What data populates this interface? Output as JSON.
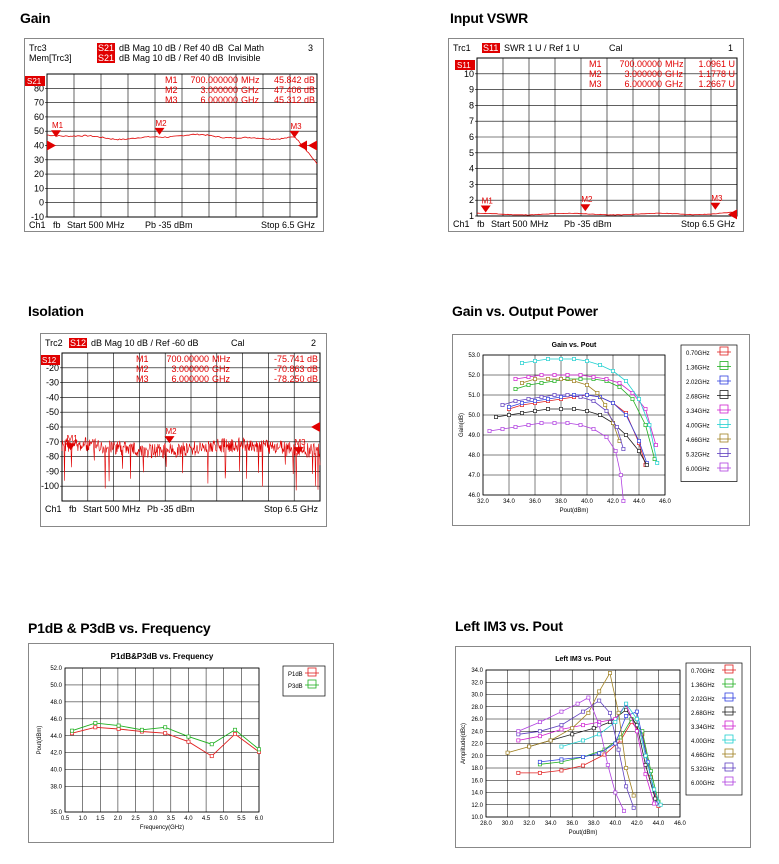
{
  "sections": {
    "gain": "Gain",
    "vswr": "Input VSWR",
    "isolation": "Isolation",
    "gain_pout": "Gain vs. Output Power",
    "p1db": "P1dB & P3dB vs. Frequency",
    "im3": "Left  IM3 vs.  Pout"
  },
  "chart_data": [
    {
      "type": "line",
      "id": "gain",
      "header": [
        {
          "trace": "Trc3",
          "param": "S21",
          "text": "dB Mag  10 dB /  Ref 40 dB",
          "extra": "Cal  Math",
          "num": "3"
        },
        {
          "trace": "Mem[Trc3]",
          "param": "S21",
          "text": "dB Mag  10 dB /  Ref 40 dB",
          "extra": "Invisible",
          "num": ""
        }
      ],
      "trace_tag": "S21",
      "yticks": [
        "80",
        "70",
        "60",
        "50",
        "40",
        "30",
        "20",
        "10",
        "0",
        "-10"
      ],
      "ylim": [
        -10,
        90
      ],
      "markers": [
        {
          "name": "M1",
          "value": "700.000000",
          "unit": "MHz",
          "reading": "45.842 dB",
          "f": 0.7,
          "y": 45.8
        },
        {
          "name": "M2",
          "value": "3.000000",
          "unit": "GHz",
          "reading": "47.406 dB",
          "f": 3.0,
          "y": 47.4
        },
        {
          "name": "M3",
          "value": "6.000000",
          "unit": "GHz",
          "reading": "45.312 dB",
          "f": 6.0,
          "y": 45.3
        }
      ],
      "footer": {
        "ch": "Ch1",
        "mode": "fb",
        "start": "Start  500 MHz",
        "power": "Pb   -35 dBm",
        "stop": "Stop  6.5 GHz"
      },
      "trace_color": "#e00000"
    },
    {
      "type": "line",
      "id": "vswr",
      "header": [
        {
          "trace": "Trc1",
          "param": "S11",
          "text": "SWR  1 U /  Ref 1 U",
          "extra": "Cal",
          "num": "1"
        }
      ],
      "trace_tag": "S11",
      "yticks": [
        "10",
        "9",
        "8",
        "7",
        "6",
        "5",
        "4",
        "3",
        "2",
        "1"
      ],
      "ylim": [
        1,
        11
      ],
      "markers": [
        {
          "name": "M1",
          "value": "700.00000",
          "unit": "MHz",
          "reading": "1.0961 U",
          "f": 0.7,
          "y": 1.096
        },
        {
          "name": "M2",
          "value": "3.000000",
          "unit": "GHz",
          "reading": "1.1778 U",
          "f": 3.0,
          "y": 1.178
        },
        {
          "name": "M3",
          "value": "6.000000",
          "unit": "GHz",
          "reading": "1.2667 U",
          "f": 6.0,
          "y": 1.267
        }
      ],
      "footer": {
        "ch": "Ch1",
        "mode": "fb",
        "start": "Start  500 MHz",
        "power": "Pb   -35 dBm",
        "stop": "Stop  6.5 GHz"
      },
      "trace_color": "#e00000"
    },
    {
      "type": "line",
      "id": "isolation",
      "header": [
        {
          "trace": "Trc2",
          "param": "S12",
          "text": "dB Mag  10 dB /  Ref -60 dB",
          "extra": "Cal",
          "num": "2"
        }
      ],
      "trace_tag": "S12",
      "yticks": [
        "-20",
        "-30",
        "-40",
        "-50",
        "-60",
        "-70",
        "-80",
        "-90",
        "-100"
      ],
      "ylim": [
        -110,
        -10
      ],
      "markers": [
        {
          "name": "M1",
          "value": "700.00000",
          "unit": "MHz",
          "reading": "-75.741 dB",
          "f": 0.7,
          "y": -75.7
        },
        {
          "name": "M2",
          "value": "3.000000",
          "unit": "GHz",
          "reading": "-70.863 dB",
          "f": 3.0,
          "y": -70.9
        },
        {
          "name": "M3",
          "value": "6.000000",
          "unit": "GHz",
          "reading": "-78.250 dB",
          "f": 6.0,
          "y": -78.3
        }
      ],
      "footer": {
        "ch": "Ch1",
        "mode": "fb",
        "start": "Start  500 MHz",
        "power": "Pb   -35 dBm",
        "stop": "Stop  6.5 GHz"
      },
      "trace_color": "#e00000"
    },
    {
      "type": "line",
      "id": "gain_pout",
      "title": "Gain vs. Pout",
      "xlabel": "Pout(dBm)",
      "ylabel": "Gain(dB)",
      "xlim": [
        32,
        46
      ],
      "ylim": [
        46,
        53
      ],
      "xticks": [
        "32.0",
        "34.0",
        "36.0",
        "38.0",
        "40.0",
        "42.0",
        "44.0",
        "46.0"
      ],
      "yticks": [
        "46.0",
        "47.0",
        "48.0",
        "49.0",
        "50.0",
        "51.0",
        "52.0",
        "53.0"
      ],
      "series": [
        {
          "name": "0.70GHz",
          "color": "#e02020",
          "x": [
            34,
            35,
            36,
            37,
            38,
            39,
            40,
            41,
            42,
            43,
            44,
            44.5
          ],
          "y": [
            50.3,
            50.5,
            50.6,
            50.7,
            50.8,
            50.9,
            51.0,
            50.9,
            50.6,
            50.1,
            48.6,
            47.5
          ]
        },
        {
          "name": "1.36GHz",
          "color": "#20b020",
          "x": [
            34.5,
            35.5,
            36.5,
            37.5,
            38.5,
            39.5,
            40.5,
            41.5,
            42.5,
            43.5,
            44.5,
            45.2
          ],
          "y": [
            51.3,
            51.5,
            51.6,
            51.7,
            51.8,
            51.8,
            51.8,
            51.7,
            51.4,
            50.8,
            49.5,
            47.8
          ]
        },
        {
          "name": "2.02GHz",
          "color": "#3040e0",
          "x": [
            34,
            35,
            36,
            37,
            38,
            39,
            40,
            41,
            42,
            43,
            44,
            44.6
          ],
          "y": [
            50.4,
            50.6,
            50.7,
            50.8,
            50.9,
            51.0,
            51.0,
            50.9,
            50.6,
            50.0,
            48.7,
            47.6
          ]
        },
        {
          "name": "2.68GHz",
          "color": "#202020",
          "x": [
            33,
            34,
            35,
            36,
            37,
            38,
            39,
            40,
            41,
            42,
            43,
            44,
            44.6
          ],
          "y": [
            49.9,
            50.0,
            50.1,
            50.2,
            50.3,
            50.3,
            50.3,
            50.2,
            50.0,
            49.6,
            49.0,
            48.2,
            47.5
          ]
        },
        {
          "name": "3.34GHz",
          "color": "#d020d0",
          "x": [
            34.5,
            35.5,
            36.5,
            37.5,
            38.5,
            39.5,
            40.5,
            41.5,
            42.5,
            43.5,
            44.5,
            45.3
          ],
          "y": [
            51.8,
            51.9,
            52.0,
            52.0,
            52.0,
            52.0,
            51.9,
            51.8,
            51.6,
            51.1,
            50.3,
            48.5
          ]
        },
        {
          "name": "4.00GHz",
          "color": "#20d0d0",
          "x": [
            35,
            36,
            37,
            38,
            39,
            40,
            41,
            42,
            43,
            44,
            44.8,
            45.4
          ],
          "y": [
            52.6,
            52.7,
            52.8,
            52.8,
            52.8,
            52.7,
            52.5,
            52.2,
            51.7,
            50.8,
            49.5,
            47.6
          ]
        },
        {
          "name": "4.66GHz",
          "color": "#a08020",
          "x": [
            35,
            36,
            37,
            38,
            39,
            40,
            40.8,
            41.4,
            42,
            42.5
          ],
          "y": [
            51.6,
            51.8,
            51.8,
            51.8,
            51.7,
            51.5,
            51.1,
            50.5,
            49.6,
            48.7
          ]
        },
        {
          "name": "5.32GHz",
          "color": "#6040c0",
          "x": [
            33.5,
            34.5,
            35.5,
            36.5,
            37.5,
            38.5,
            39.5,
            40.5,
            41.5,
            42.3,
            42.8
          ],
          "y": [
            50.5,
            50.7,
            50.8,
            50.9,
            51.0,
            51.0,
            50.9,
            50.7,
            50.2,
            49.4,
            48.3
          ]
        },
        {
          "name": "6.00GHz",
          "color": "#b040e0",
          "x": [
            32.5,
            33.5,
            34.5,
            35.5,
            36.5,
            37.5,
            38.5,
            39.5,
            40.5,
            41.5,
            42.2,
            42.6,
            42.8
          ],
          "y": [
            49.2,
            49.3,
            49.4,
            49.5,
            49.6,
            49.6,
            49.6,
            49.5,
            49.3,
            48.9,
            48.2,
            47.0,
            45.7
          ]
        }
      ]
    },
    {
      "type": "line",
      "id": "p1db",
      "title": "P1dB&P3dB vs. Frequency",
      "xlabel": "Frequency(GHz)",
      "ylabel": "Pout(dBm)",
      "xlim": [
        0.5,
        6.0
      ],
      "ylim": [
        35,
        52
      ],
      "xticks": [
        "0.5",
        "1.0",
        "1.5",
        "2.0",
        "2.5",
        "3.0",
        "3.5",
        "4.0",
        "4.5",
        "5.0",
        "5.5",
        "6.0"
      ],
      "yticks": [
        "35.0",
        "38.0",
        "40.0",
        "42.0",
        "44.0",
        "46.0",
        "48.0",
        "50.0",
        "52.0"
      ],
      "series": [
        {
          "name": "P1dB",
          "color": "#e02020",
          "x": [
            0.7,
            1.36,
            2.02,
            2.68,
            3.34,
            4.0,
            4.66,
            5.32,
            6.0
          ],
          "y": [
            44.3,
            45.0,
            44.8,
            44.5,
            44.3,
            43.3,
            41.6,
            44.2,
            42.1
          ]
        },
        {
          "name": "P3dB",
          "color": "#20b020",
          "x": [
            0.7,
            1.36,
            2.02,
            2.68,
            3.34,
            4.0,
            4.66,
            5.32,
            6.0
          ],
          "y": [
            44.6,
            45.5,
            45.2,
            44.7,
            45.0,
            43.9,
            43.0,
            44.7,
            42.4
          ]
        }
      ]
    },
    {
      "type": "line",
      "id": "im3",
      "title": "Left IM3 vs. Pout",
      "xlabel": "Pout(dBm)",
      "ylabel": "Amplitude(dBc)",
      "xlim": [
        28,
        46
      ],
      "ylim": [
        10,
        34
      ],
      "xticks": [
        "28.0",
        "30.0",
        "32.0",
        "34.0",
        "36.0",
        "38.0",
        "40.0",
        "42.0",
        "44.0",
        "46.0"
      ],
      "yticks": [
        "10.0",
        "12.0",
        "14.0",
        "16.0",
        "18.0",
        "20.0",
        "22.0",
        "24.0",
        "26.0",
        "28.0",
        "30.0",
        "32.0",
        "34.0"
      ],
      "series": [
        {
          "name": "0.70GHz",
          "color": "#e02020",
          "x": [
            31,
            33,
            35,
            37,
            39,
            40.5,
            41.5,
            42.5,
            43.3,
            44
          ],
          "y": [
            17.2,
            17.2,
            17.6,
            18.4,
            20.2,
            22.5,
            25.5,
            23.5,
            16.5,
            11.8
          ]
        },
        {
          "name": "1.36GHz",
          "color": "#20b020",
          "x": [
            33,
            35,
            37,
            39,
            40.5,
            41.5,
            42.5,
            43.3,
            44
          ],
          "y": [
            18.6,
            19.0,
            19.8,
            21.0,
            23.0,
            26.0,
            24.0,
            17.5,
            12.5
          ]
        },
        {
          "name": "2.02GHz",
          "color": "#3040e0",
          "x": [
            33,
            35,
            37,
            38.5,
            40,
            41,
            42,
            43,
            43.8
          ],
          "y": [
            19.0,
            19.4,
            19.8,
            20.4,
            22.0,
            26.5,
            27.2,
            19.0,
            12.2
          ]
        },
        {
          "name": "2.68GHz",
          "color": "#202020",
          "x": [
            32,
            34,
            36,
            38,
            39.5,
            41,
            42,
            42.8,
            43.7
          ],
          "y": [
            21.5,
            22.5,
            23.5,
            24.5,
            25.5,
            27.5,
            25.0,
            18.5,
            13.0
          ]
        },
        {
          "name": "3.34GHz",
          "color": "#d020d0",
          "x": [
            31,
            33,
            35,
            37,
            38.5,
            40,
            41,
            42,
            42.8,
            43.6
          ],
          "y": [
            22.5,
            23.2,
            24.3,
            25.0,
            25.5,
            26.0,
            28.4,
            24.0,
            17.0,
            12.2
          ]
        },
        {
          "name": "4.00GHz",
          "color": "#20d0d0",
          "x": [
            35,
            37,
            38.5,
            40,
            41,
            42,
            42.8,
            43.6,
            44.2
          ],
          "y": [
            21.5,
            22.5,
            23.5,
            25.5,
            28.5,
            26.0,
            20.0,
            14.5,
            12.0
          ]
        },
        {
          "name": "4.66GHz",
          "color": "#a08020",
          "x": [
            30,
            32,
            34,
            36,
            37.5,
            38.5,
            39.5,
            40.3,
            41,
            41.7
          ],
          "y": [
            20.5,
            21.5,
            22.5,
            24.5,
            27.0,
            30.5,
            33.5,
            27.0,
            18.0,
            13.5
          ]
        },
        {
          "name": "5.32GHz",
          "color": "#6040c0",
          "x": [
            31,
            33,
            35,
            37,
            38.5,
            39.5,
            40.3,
            41,
            41.7
          ],
          "y": [
            23.5,
            24.0,
            25.0,
            27.2,
            29.0,
            27.0,
            21.0,
            15.0,
            11.5
          ]
        },
        {
          "name": "6.00GHz",
          "color": "#b040e0",
          "x": [
            31,
            33,
            35,
            36.5,
            37.5,
            38.5,
            39.3,
            40,
            40.8
          ],
          "y": [
            24.0,
            25.5,
            27.2,
            28.5,
            29.5,
            25.0,
            18.5,
            14.0,
            11.0
          ]
        }
      ]
    }
  ]
}
